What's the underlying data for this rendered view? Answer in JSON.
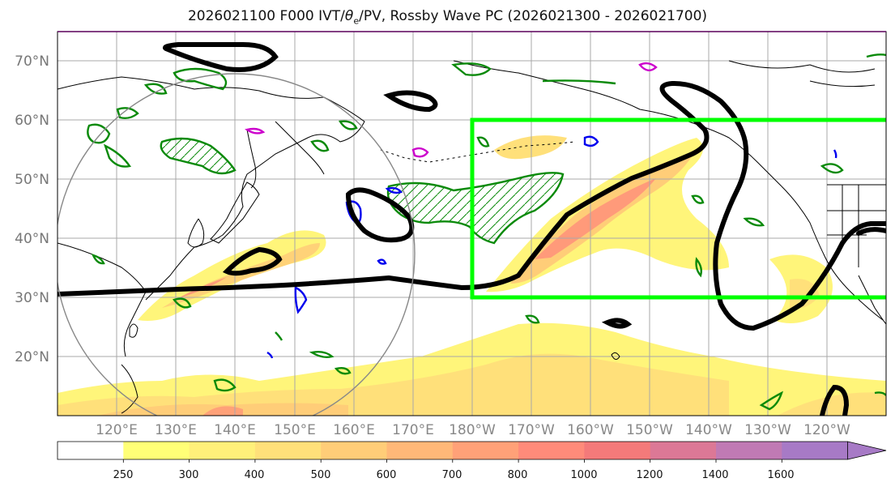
{
  "title": {
    "prefix": "2026021100 F000 IVT/",
    "theta": "θ",
    "sub": "e",
    "suffix": "/PV, Rossby Wave PC (2026021300 - 2026021700)"
  },
  "lat_labels": [
    "70°N",
    "60°N",
    "50°N",
    "40°N",
    "30°N",
    "20°N"
  ],
  "lon_labels": [
    "120°E",
    "130°E",
    "140°E",
    "150°E",
    "160°E",
    "170°E",
    "180°W",
    "170°W",
    "160°W",
    "150°W",
    "140°W",
    "130°W",
    "120°W"
  ],
  "colorbar": {
    "ticks": [
      "250",
      "300",
      "400",
      "500",
      "600",
      "700",
      "800",
      "1000",
      "1200",
      "1400",
      "1600"
    ],
    "colors": [
      "#ffffff",
      "#ffff77",
      "#fff07a",
      "#ffe07a",
      "#ffcd78",
      "#ffb878",
      "#ffa178",
      "#ff8b7a",
      "#f47a7a",
      "#dc7896",
      "#c07ab4",
      "#a77ac6"
    ],
    "extend": "max"
  },
  "map": {
    "projection": "cylindrical",
    "lon_range": [
      110,
      250
    ],
    "lat_range": [
      10,
      75
    ],
    "highlight_box": {
      "lon": [
        180,
        250
      ],
      "lat": [
        30,
        60
      ],
      "color": "#00ff00"
    },
    "contour_colors": {
      "theta_e": "#000000",
      "pv_green": "#0a8a0a",
      "blue": "#0000ee",
      "magenta": "#cc00cc"
    }
  }
}
